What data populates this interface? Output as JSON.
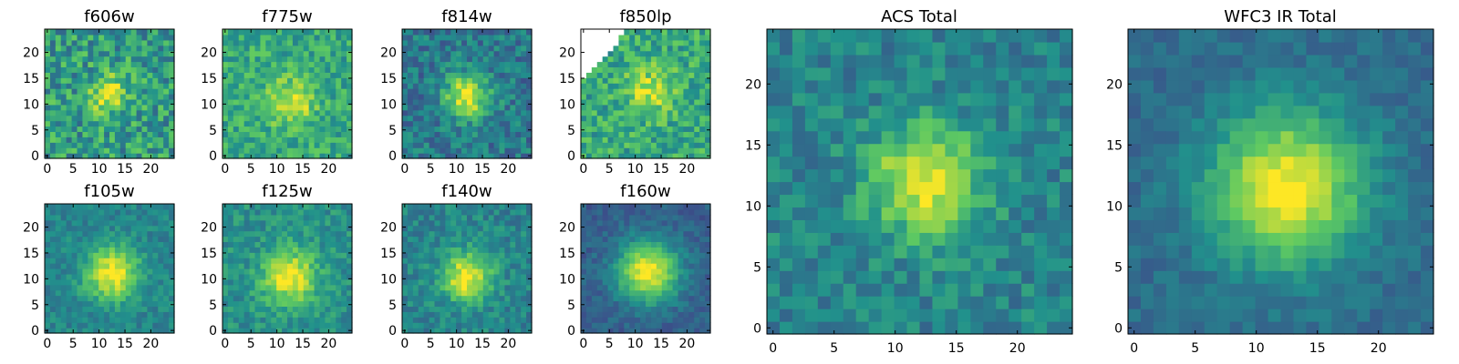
{
  "figure": {
    "colormap": "viridis",
    "background": "#ffffff",
    "colormap_stops": [
      "#440154",
      "#3b528b",
      "#21918c",
      "#5ec962",
      "#fde725"
    ],
    "masked_color": "#ffffff"
  },
  "chart_data": [
    {
      "type": "heatmap",
      "id": "f606w",
      "title": "f606w",
      "xlim": [
        0,
        24
      ],
      "ylim": [
        0,
        24
      ],
      "xticks": [
        0,
        5,
        10,
        15,
        20
      ],
      "yticks": [
        0,
        5,
        10,
        15,
        20
      ],
      "xtick_labels": [
        "0",
        "5",
        "10",
        "15",
        "20"
      ],
      "ytick_labels": [
        "0",
        "5",
        "10",
        "15",
        "20"
      ],
      "grid_size": [
        24,
        24
      ],
      "peak_pixel": [
        12,
        12
      ],
      "peak_width": 2.5,
      "background_level": 0.55,
      "peak_level": 0.95,
      "noise": 0.22
    },
    {
      "type": "heatmap",
      "id": "f775w",
      "title": "f775w",
      "xlim": [
        0,
        24
      ],
      "ylim": [
        0,
        24
      ],
      "xticks": [
        0,
        5,
        10,
        15,
        20
      ],
      "yticks": [
        0,
        5,
        10,
        15,
        20
      ],
      "xtick_labels": [
        "0",
        "5",
        "10",
        "15",
        "20"
      ],
      "ytick_labels": [
        "0",
        "5",
        "10",
        "15",
        "20"
      ],
      "grid_size": [
        24,
        24
      ],
      "peak_pixel": [
        12.5,
        10.5
      ],
      "peak_width": 3,
      "background_level": 0.6,
      "peak_level": 0.97,
      "noise": 0.16
    },
    {
      "type": "heatmap",
      "id": "f814w",
      "title": "f814w",
      "xlim": [
        0,
        24
      ],
      "ylim": [
        0,
        24
      ],
      "xticks": [
        0,
        5,
        10,
        15,
        20
      ],
      "yticks": [
        0,
        5,
        10,
        15,
        20
      ],
      "xtick_labels": [
        "0",
        "5",
        "10",
        "15",
        "20"
      ],
      "ytick_labels": [
        "0",
        "5",
        "10",
        "15",
        "20"
      ],
      "grid_size": [
        24,
        24
      ],
      "peak_pixel": [
        12,
        11.5
      ],
      "peak_width": 3,
      "background_level": 0.4,
      "peak_level": 0.95,
      "noise": 0.16
    },
    {
      "type": "heatmap",
      "id": "f850lp",
      "title": "f850lp",
      "xlim": [
        0,
        24
      ],
      "ylim": [
        0,
        24
      ],
      "xticks": [
        0,
        5,
        10,
        15,
        20
      ],
      "yticks": [
        0,
        5,
        10,
        15,
        20
      ],
      "xtick_labels": [
        "0",
        "5",
        "10",
        "15",
        "20"
      ],
      "ytick_labels": [
        "0",
        "5",
        "10",
        "15",
        "20"
      ],
      "grid_size": [
        24,
        24
      ],
      "peak_pixel": [
        13,
        12.5
      ],
      "peak_width": 3,
      "background_level": 0.6,
      "peak_level": 0.95,
      "noise": 0.18,
      "masked_region": "upper-left triangle (no data)"
    },
    {
      "type": "heatmap",
      "id": "f105w",
      "title": "f105w",
      "xlim": [
        0,
        24
      ],
      "ylim": [
        0,
        24
      ],
      "xticks": [
        0,
        5,
        10,
        15,
        20
      ],
      "yticks": [
        0,
        5,
        10,
        15,
        20
      ],
      "xtick_labels": [
        "0",
        "5",
        "10",
        "15",
        "20"
      ],
      "ytick_labels": [
        "0",
        "5",
        "10",
        "15",
        "20"
      ],
      "grid_size": [
        24,
        24
      ],
      "peak_pixel": [
        12.5,
        11
      ],
      "peak_width": 3.5,
      "background_level": 0.45,
      "peak_level": 1.0,
      "noise": 0.1
    },
    {
      "type": "heatmap",
      "id": "f125w",
      "title": "f125w",
      "xlim": [
        0,
        24
      ],
      "ylim": [
        0,
        24
      ],
      "xticks": [
        0,
        5,
        10,
        15,
        20
      ],
      "yticks": [
        0,
        5,
        10,
        15,
        20
      ],
      "xtick_labels": [
        "0",
        "5",
        "10",
        "15",
        "20"
      ],
      "ytick_labels": [
        "0",
        "5",
        "10",
        "15",
        "20"
      ],
      "grid_size": [
        24,
        24
      ],
      "peak_pixel": [
        12.5,
        10.5
      ],
      "peak_width": 3.5,
      "background_level": 0.5,
      "peak_level": 1.0,
      "noise": 0.12
    },
    {
      "type": "heatmap",
      "id": "f140w",
      "title": "f140w",
      "xlim": [
        0,
        24
      ],
      "ylim": [
        0,
        24
      ],
      "xticks": [
        0,
        5,
        10,
        15,
        20
      ],
      "yticks": [
        0,
        5,
        10,
        15,
        20
      ],
      "xtick_labels": [
        "0",
        "5",
        "10",
        "15",
        "20"
      ],
      "ytick_labels": [
        "0",
        "5",
        "10",
        "15",
        "20"
      ],
      "grid_size": [
        24,
        24
      ],
      "peak_pixel": [
        12,
        10.5
      ],
      "peak_width": 3.2,
      "background_level": 0.45,
      "peak_level": 1.0,
      "noise": 0.12
    },
    {
      "type": "heatmap",
      "id": "f160w",
      "title": "f160w",
      "xlim": [
        0,
        24
      ],
      "ylim": [
        0,
        24
      ],
      "xticks": [
        0,
        5,
        10,
        15,
        20
      ],
      "yticks": [
        0,
        5,
        10,
        15,
        20
      ],
      "xtick_labels": [
        "0",
        "5",
        "10",
        "15",
        "20"
      ],
      "ytick_labels": [
        "0",
        "5",
        "10",
        "15",
        "20"
      ],
      "grid_size": [
        24,
        24
      ],
      "peak_pixel": [
        12.5,
        11.5
      ],
      "peak_width": 4,
      "background_level": 0.3,
      "peak_level": 1.0,
      "noise": 0.08
    },
    {
      "type": "heatmap",
      "id": "acs-total",
      "title": "ACS Total",
      "xlim": [
        0,
        24
      ],
      "ylim": [
        0,
        24
      ],
      "xticks": [
        0,
        5,
        10,
        15,
        20
      ],
      "yticks": [
        0,
        5,
        10,
        15,
        20
      ],
      "xtick_labels": [
        "0",
        "5",
        "10",
        "15",
        "20"
      ],
      "ytick_labels": [
        "0",
        "5",
        "10",
        "15",
        "20"
      ],
      "grid_size": [
        24,
        24
      ],
      "peak_pixel": [
        12.5,
        12
      ],
      "peak_width": 3,
      "background_level": 0.45,
      "peak_level": 1.0,
      "noise": 0.13
    },
    {
      "type": "heatmap",
      "id": "wfc3-ir-total",
      "title": "WFC3 IR Total",
      "xlim": [
        0,
        24
      ],
      "ylim": [
        0,
        24
      ],
      "xticks": [
        0,
        5,
        10,
        15,
        20
      ],
      "yticks": [
        0,
        5,
        10,
        15,
        20
      ],
      "xtick_labels": [
        "0",
        "5",
        "10",
        "15",
        "20"
      ],
      "ytick_labels": [
        "0",
        "5",
        "10",
        "15",
        "20"
      ],
      "grid_size": [
        24,
        24
      ],
      "peak_pixel": [
        12.5,
        11.5
      ],
      "peak_width": 4.2,
      "background_level": 0.35,
      "peak_level": 1.0,
      "noise": 0.07
    }
  ]
}
